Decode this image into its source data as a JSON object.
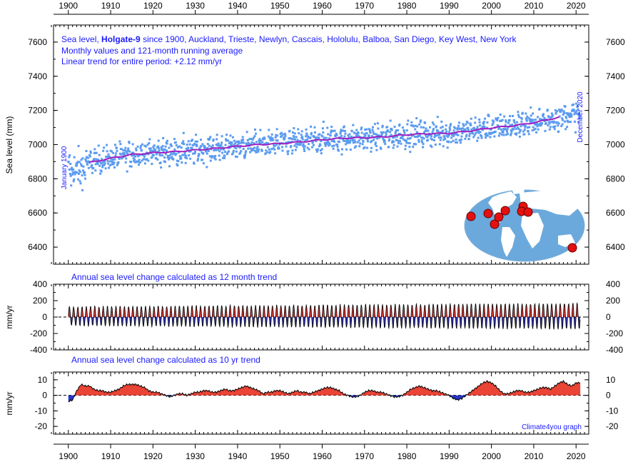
{
  "chart_data": [
    {
      "type": "scatter",
      "title_parts": [
        "Sea level, ",
        "Holgate-9",
        " since 1900, Auckland, Trieste, Newlyn, Cascais, Hololulu, Balboa, San Diego, Key West, New York"
      ],
      "subtitle": "Monthly values and 121-month running average",
      "subtitle2": "Linear trend for entire period: +2.12 mm/yr",
      "ylabel": "Sea level (mm)",
      "start_annotation": "January 1900",
      "end_annotation": "December 2020",
      "xlim": [
        1896.5,
        2023
      ],
      "ylim": [
        6300,
        7700
      ],
      "xticks": [
        1900,
        1910,
        1920,
        1930,
        1940,
        1950,
        1960,
        1970,
        1980,
        1990,
        2000,
        2010,
        2020
      ],
      "yticks": [
        6400,
        6600,
        6800,
        7000,
        7200,
        7400,
        7600
      ],
      "series": [
        {
          "role": "monthly",
          "x_range": [
            1900,
            2020.92
          ],
          "step": 0.0833,
          "color": "#5b9bf0"
        },
        {
          "role": "running_average",
          "color": "#a020c0",
          "x": [
            1905,
            1910,
            1915,
            1920,
            1925,
            1930,
            1935,
            1940,
            1945,
            1950,
            1955,
            1960,
            1965,
            1970,
            1975,
            1980,
            1985,
            1990,
            1995,
            2000,
            2005,
            2010,
            2016
          ],
          "y": [
            6895,
            6920,
            6942,
            6952,
            6958,
            6968,
            6978,
            6990,
            7000,
            7006,
            7016,
            7028,
            7038,
            7040,
            7046,
            7058,
            7064,
            7066,
            7080,
            7098,
            7110,
            7128,
            7160
          ]
        }
      ],
      "map_markers": 9,
      "marker_color": "#e41010"
    },
    {
      "type": "line",
      "title": "Annual sea level change calculated as 12 month trend",
      "ylabel": "mm/yr",
      "xlim": [
        1896.5,
        2023
      ],
      "ylim": [
        -400,
        400
      ],
      "yticks": [
        -400,
        -200,
        0,
        200,
        400
      ],
      "approx_amplitude": [
        120,
        220
      ],
      "positive_color": "#d01818",
      "negative_color": "#1010b0"
    },
    {
      "type": "area",
      "title": "Annual sea level change calculated as 10 yr trend",
      "ylabel": "mm/yr",
      "xlim": [
        1896.5,
        2023
      ],
      "ylim": [
        -25,
        15
      ],
      "yticks": [
        -20,
        -10,
        0,
        10
      ],
      "positive_color": "#e83020",
      "negative_color": "#1020c0",
      "x": [
        1900,
        1901,
        1902,
        1903,
        1904,
        1905,
        1906,
        1907,
        1908,
        1909,
        1910,
        1911,
        1912,
        1913,
        1914,
        1915,
        1916,
        1917,
        1918,
        1919,
        1920,
        1921,
        1922,
        1923,
        1924,
        1925,
        1926,
        1927,
        1928,
        1929,
        1930,
        1931,
        1932,
        1933,
        1934,
        1935,
        1936,
        1937,
        1938,
        1939,
        1940,
        1941,
        1942,
        1943,
        1944,
        1945,
        1946,
        1947,
        1948,
        1949,
        1950,
        1951,
        1952,
        1953,
        1954,
        1955,
        1956,
        1957,
        1958,
        1959,
        1960,
        1961,
        1962,
        1963,
        1964,
        1965,
        1966,
        1967,
        1968,
        1969,
        1970,
        1971,
        1972,
        1973,
        1974,
        1975,
        1976,
        1977,
        1978,
        1979,
        1980,
        1981,
        1982,
        1983,
        1984,
        1985,
        1986,
        1987,
        1988,
        1989,
        1990,
        1991,
        1992,
        1993,
        1994,
        1995,
        1996,
        1997,
        1998,
        1999,
        2000,
        2001,
        2002,
        2003,
        2004,
        2005,
        2006,
        2007,
        2008,
        2009,
        2010,
        2011,
        2012,
        2013,
        2014,
        2015,
        2016,
        2017,
        2018,
        2019,
        2020,
        2021
      ],
      "values": [
        -4,
        -3,
        3,
        7,
        6,
        6,
        4,
        3,
        3,
        2,
        2,
        3,
        4,
        6,
        7,
        7,
        7,
        6,
        5,
        3,
        2,
        2,
        1,
        0,
        -1,
        0,
        1,
        1,
        0,
        1,
        2,
        2,
        3,
        3,
        2,
        2,
        3,
        4,
        3,
        3,
        4,
        5,
        6,
        5,
        4,
        3,
        1,
        2,
        2,
        3,
        3,
        2,
        1,
        2,
        3,
        2,
        2,
        1,
        2,
        3,
        4,
        5,
        5,
        4,
        3,
        1,
        0,
        -1,
        -1,
        0,
        2,
        3,
        3,
        2,
        2,
        1,
        0,
        -1,
        -1,
        0,
        2,
        4,
        5,
        6,
        5,
        4,
        3,
        3,
        2,
        1,
        0,
        -2,
        -3,
        -2,
        0,
        2,
        4,
        6,
        8,
        9,
        8,
        6,
        3,
        1,
        1,
        2,
        3,
        3,
        2,
        2,
        3,
        4,
        5,
        5,
        4,
        6,
        8,
        9,
        7,
        6,
        8,
        8
      ]
    }
  ],
  "credit": "Climate4you graph"
}
